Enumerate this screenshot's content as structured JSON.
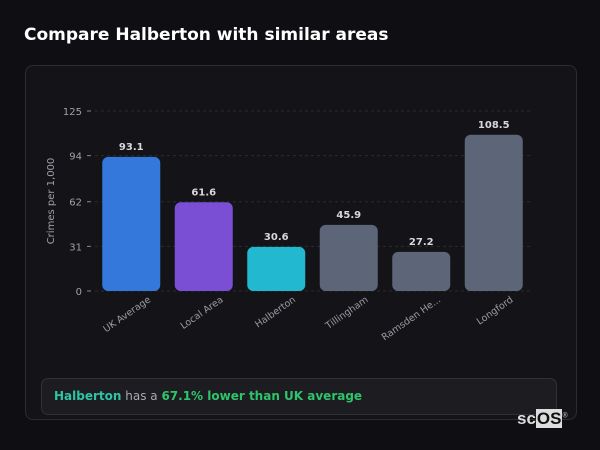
{
  "title": "Compare Halberton with similar areas",
  "chart_data": {
    "type": "bar",
    "ylabel": "Crimes per 1,000",
    "xlabel": "",
    "ylim": [
      0,
      125
    ],
    "yticks": [
      0,
      31,
      62,
      94,
      125
    ],
    "grid": true,
    "categories": [
      "UK Average",
      "Local Area",
      "Halberton",
      "Tillingham",
      "Ramsden He...",
      "Longford"
    ],
    "values": [
      93.1,
      61.6,
      30.6,
      45.9,
      27.2,
      108.5
    ],
    "value_labels": [
      "93.1",
      "61.6",
      "30.6",
      "45.9",
      "27.2",
      "108.5"
    ],
    "colors": [
      "#3478db",
      "#7b4fd4",
      "#22b8cf",
      "#5c6678",
      "#5c6678",
      "#5c6678"
    ]
  },
  "summary": {
    "area": "Halberton",
    "connector": " has a ",
    "comparison": "67.1% lower than UK average"
  },
  "logo": {
    "text_a": "sc",
    "text_b": "OS",
    "mark": "®"
  }
}
